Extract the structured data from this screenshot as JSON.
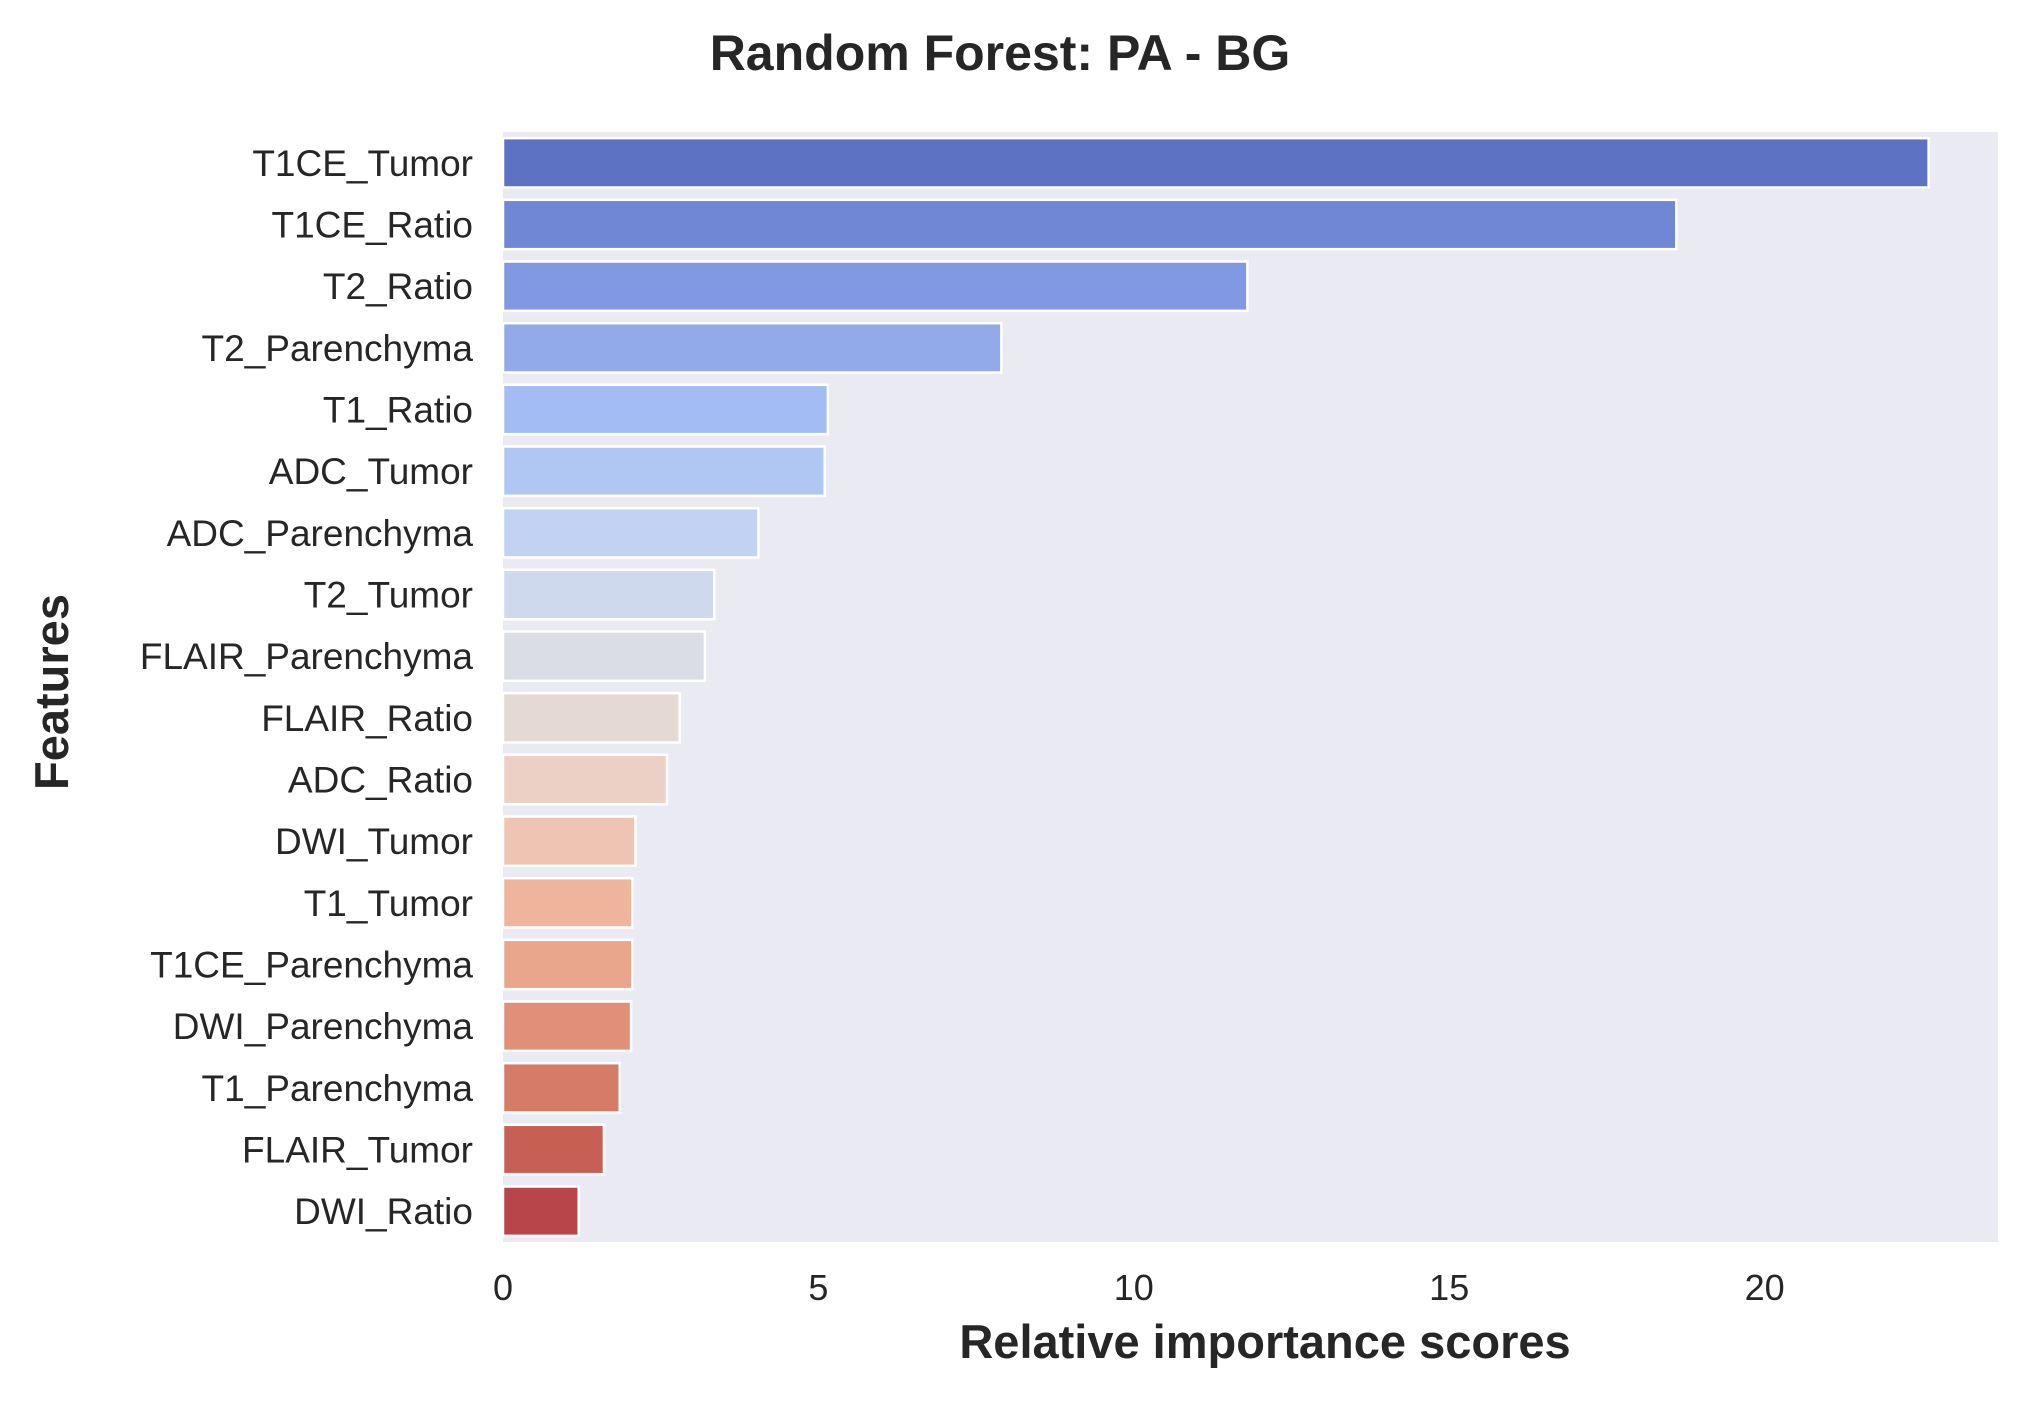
{
  "chart_data": {
    "type": "bar",
    "orientation": "horizontal",
    "title": "Random Forest: PA - BG",
    "xlabel": "Relative importance scores",
    "ylabel": "Features",
    "xlim": [
      0,
      23.7
    ],
    "xticks": [
      0,
      5,
      10,
      15,
      20
    ],
    "grid": false,
    "legend": "none",
    "categories": [
      "T1CE_Tumor",
      "T1CE_Ratio",
      "T2_Ratio",
      "T2_Parenchyma",
      "T1_Ratio",
      "ADC_Tumor",
      "ADC_Parenchyma",
      "T2_Tumor",
      "FLAIR_Parenchyma",
      "FLAIR_Ratio",
      "ADC_Ratio",
      "DWI_Tumor",
      "T1_Tumor",
      "T1CE_Parenchyma",
      "DWI_Parenchyma",
      "T1_Parenchyma",
      "FLAIR_Tumor",
      "DWI_Ratio"
    ],
    "values": [
      22.6,
      18.6,
      11.8,
      7.9,
      5.15,
      5.1,
      4.05,
      3.35,
      3.2,
      2.8,
      2.6,
      2.1,
      2.05,
      2.05,
      2.03,
      1.85,
      1.6,
      1.2
    ],
    "colors": [
      "#5e72c4",
      "#7087d5",
      "#8199e2",
      "#92aaea",
      "#a3bdf4",
      "#b0c7f3",
      "#c1d2f2",
      "#cfd9ee",
      "#dadce6",
      "#e4d9d3",
      "#ecd0c5",
      "#efc4b3",
      "#efb49c",
      "#e9a68d",
      "#e18f78",
      "#d77b69",
      "#c85f55",
      "#b8454a"
    ],
    "plot_background": "#eaeaf2"
  }
}
